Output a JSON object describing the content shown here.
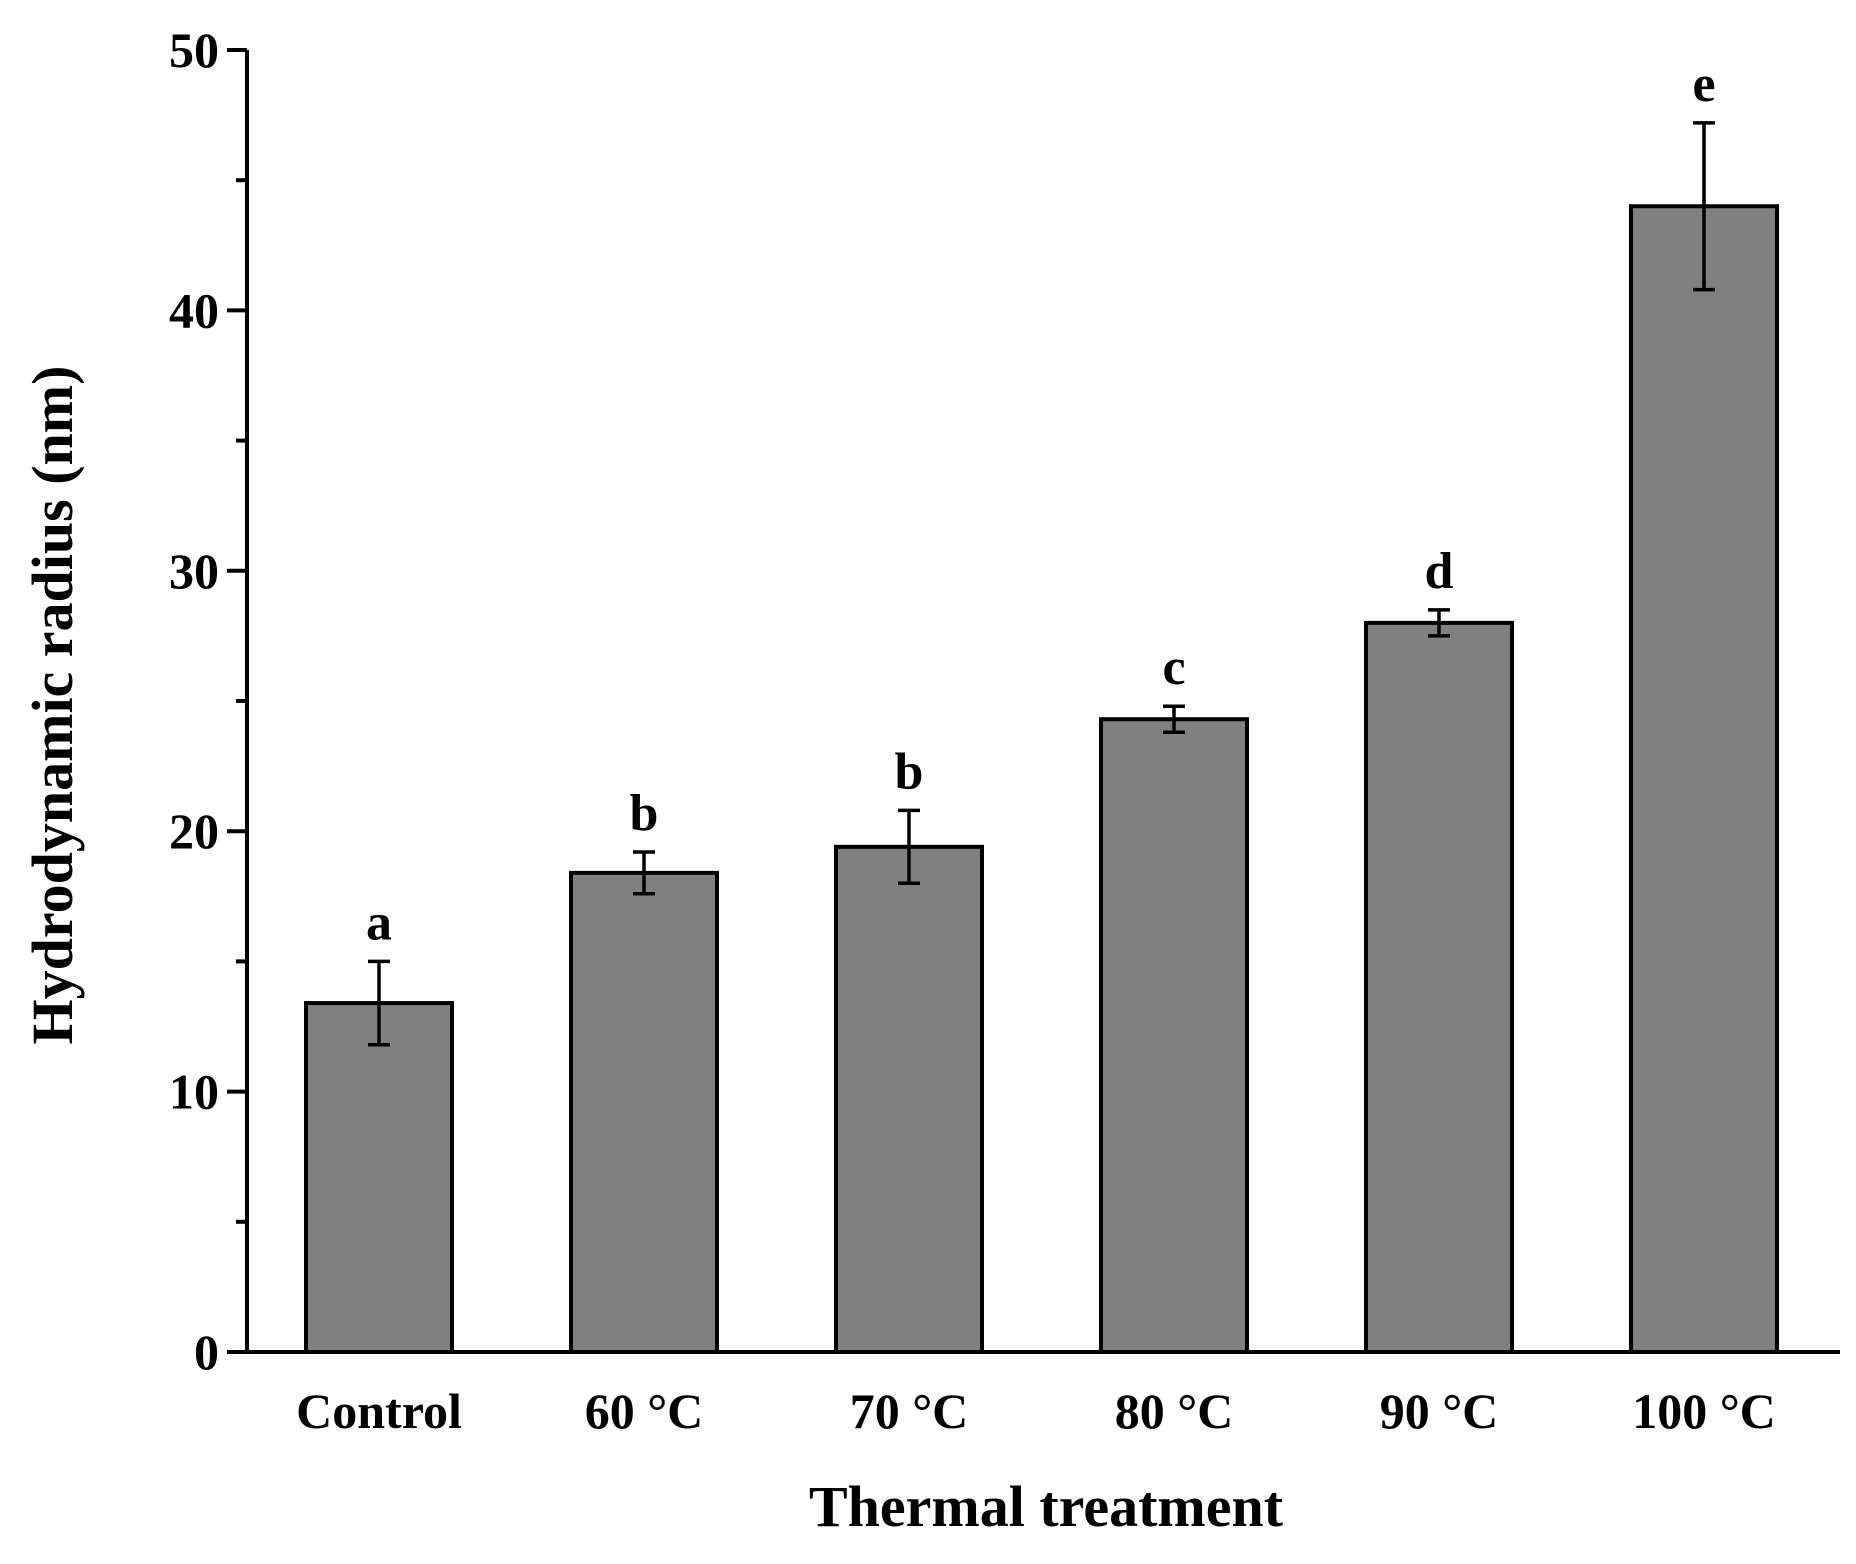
{
  "chart_data": {
    "type": "bar",
    "title": "",
    "xlabel": "Thermal treatment",
    "ylabel": "Hydrodynamic radius (nm)",
    "categories": [
      "Control",
      "60 °C",
      "70 °C",
      "80 °C",
      "90 °C",
      "100 °C"
    ],
    "values": [
      13.4,
      18.4,
      19.4,
      24.3,
      28.0,
      44.0
    ],
    "errors": [
      1.6,
      0.8,
      1.4,
      0.5,
      0.5,
      3.2
    ],
    "significance_letters": [
      "a",
      "b",
      "b",
      "c",
      "d",
      "e"
    ],
    "ylim": [
      0,
      50
    ],
    "yticks": [
      0,
      10,
      20,
      30,
      40,
      50
    ],
    "ytick_labels": [
      "0",
      "10",
      "20",
      "30",
      "40",
      "50"
    ],
    "grid": false,
    "legend": "none"
  },
  "colors": {
    "bar_fill": "#808080",
    "bar_stroke": "#000000",
    "axis": "#000000"
  }
}
